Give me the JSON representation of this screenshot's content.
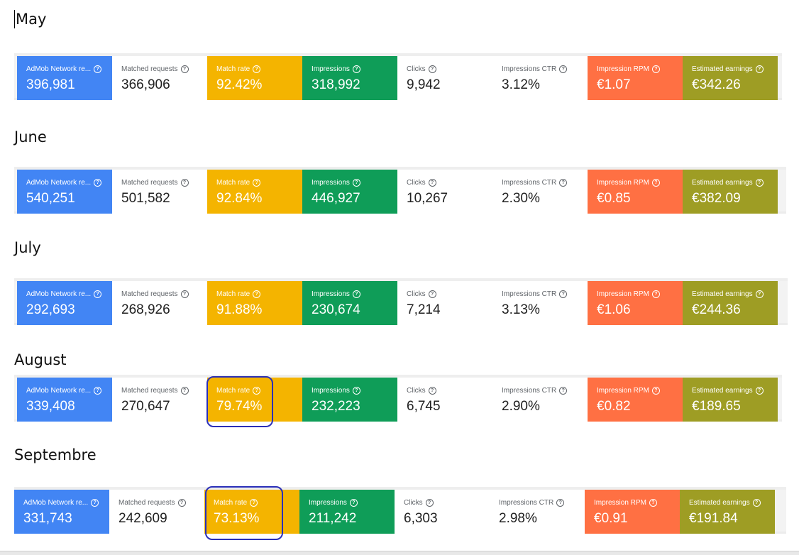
{
  "labels": {
    "admob": "AdMob Network re...",
    "matched": "Matched requests",
    "match_rate": "Match rate",
    "impressions": "Impressions",
    "clicks": "Clicks",
    "ctr": "Impressions CTR",
    "rpm": "Impression RPM",
    "earnings": "Estimated earnings"
  },
  "help_glyph": "?",
  "colors": {
    "blue": "#4285f4",
    "yellow": "#f4b400",
    "green": "#0f9d58",
    "orange": "#ff7043",
    "olive": "#9e9d24",
    "annotation": "#2a2fb8"
  },
  "months": [
    {
      "name": "May",
      "admob": "396,981",
      "matched": "366,906",
      "match_rate": "92.42%",
      "impressions": "318,992",
      "clicks": "9,942",
      "ctr": "3.12%",
      "rpm": "€1.07",
      "earnings": "€342.26"
    },
    {
      "name": "June",
      "admob": "540,251",
      "matched": "501,582",
      "match_rate": "92.84%",
      "impressions": "446,927",
      "clicks": "10,267",
      "ctr": "2.30%",
      "rpm": "€0.85",
      "earnings": "€382.09"
    },
    {
      "name": "July",
      "admob": "292,693",
      "matched": "268,926",
      "match_rate": "91.88%",
      "impressions": "230,674",
      "clicks": "7,214",
      "ctr": "3.13%",
      "rpm": "€1.06",
      "earnings": "€244.36"
    },
    {
      "name": "August",
      "admob": "339,408",
      "matched": "270,647",
      "match_rate": "79.74%",
      "impressions": "232,223",
      "clicks": "6,745",
      "ctr": "2.90%",
      "rpm": "€0.82",
      "earnings": "€189.65"
    },
    {
      "name": "Septembre",
      "admob": "331,743",
      "matched": "242,609",
      "match_rate": "73.13%",
      "impressions": "211,242",
      "clicks": "6,303",
      "ctr": "2.98%",
      "rpm": "€0.91",
      "earnings": "€191.84"
    }
  ]
}
